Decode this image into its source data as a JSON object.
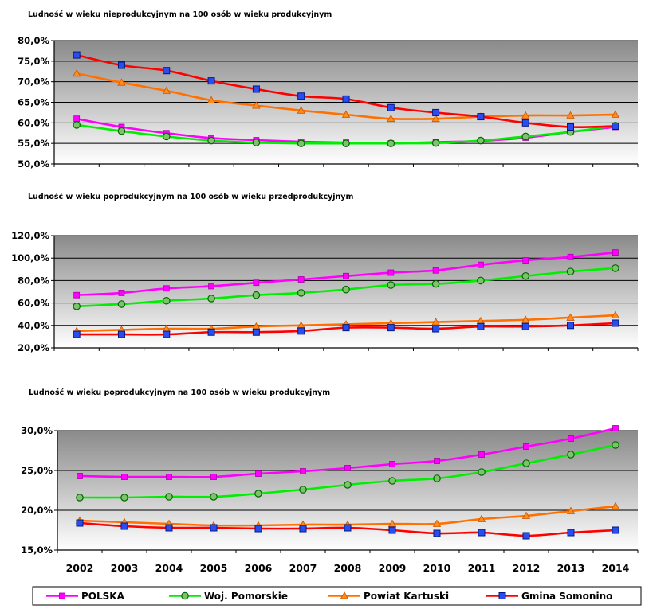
{
  "series_legend": [
    {
      "name": "POLSKA",
      "color": "#ff00ff",
      "marker": "square"
    },
    {
      "name": "Woj. Pomorskie",
      "color": "#00ee00",
      "marker": "circle"
    },
    {
      "name": "Powiat Kartuski",
      "color": "#ff7000",
      "marker": "triangle"
    },
    {
      "name": "Gmina Somonino",
      "color": "#ff0000",
      "marker": "square-blue"
    }
  ],
  "chart_data": [
    {
      "type": "line",
      "title": "Ludność w wieku nieprodukcyjnym na 100 osób w wieku produkcyjnym",
      "x": [
        "2002",
        "2003",
        "2004",
        "2005",
        "2006",
        "2007",
        "2008",
        "2009",
        "2010",
        "2011",
        "2012",
        "2013",
        "2014"
      ],
      "show_x_tick_labels": false,
      "ylim": [
        50,
        80
      ],
      "yticks": [
        "50,0%",
        "55,0%",
        "60,0%",
        "65,0%",
        "70,0%",
        "75,0%",
        "80,0%"
      ],
      "ytick_values": [
        50,
        55,
        60,
        65,
        70,
        75,
        80
      ],
      "grid": true,
      "series": [
        {
          "name": "POLSKA",
          "values": [
            61.0,
            59.0,
            57.5,
            56.3,
            55.8,
            55.4,
            55.2,
            55.0,
            55.3,
            55.6,
            56.4,
            57.8,
            59.0
          ]
        },
        {
          "name": "Woj. Pomorskie",
          "values": [
            59.5,
            58.0,
            56.7,
            55.7,
            55.2,
            55.0,
            55.0,
            55.0,
            55.1,
            55.7,
            56.7,
            57.8,
            59.3
          ]
        },
        {
          "name": "Powiat Kartuski",
          "values": [
            72.0,
            69.8,
            67.8,
            65.5,
            64.2,
            63.0,
            62.0,
            61.0,
            61.0,
            61.5,
            61.8,
            61.8,
            62.0
          ]
        },
        {
          "name": "Gmina Somonino",
          "values": [
            76.5,
            74.0,
            72.7,
            70.2,
            68.2,
            66.5,
            65.8,
            63.7,
            62.5,
            61.5,
            60.0,
            59.0,
            59.2
          ]
        }
      ]
    },
    {
      "type": "line",
      "title": "Ludność w wieku poprodukcyjnym na 100 osób w wieku przedprodukcyjnym",
      "x": [
        "2002",
        "2003",
        "2004",
        "2005",
        "2006",
        "2007",
        "2008",
        "2009",
        "2010",
        "2011",
        "2012",
        "2013",
        "2014"
      ],
      "show_x_tick_labels": false,
      "ylim": [
        20,
        120
      ],
      "yticks": [
        "20,0%",
        "40,0%",
        "60,0%",
        "80,0%",
        "100,0%",
        "120,0%"
      ],
      "ytick_values": [
        20,
        40,
        60,
        80,
        100,
        120
      ],
      "grid": true,
      "series": [
        {
          "name": "POLSKA",
          "values": [
            67,
            69,
            73,
            75,
            78,
            81,
            84,
            87,
            89,
            94,
            98,
            101,
            105
          ]
        },
        {
          "name": "Woj. Pomorskie",
          "values": [
            57,
            59,
            62,
            64,
            67,
            69,
            72,
            76,
            77,
            80,
            84,
            88,
            91
          ]
        },
        {
          "name": "Powiat Kartuski",
          "values": [
            35,
            36,
            37,
            37,
            39,
            40,
            41,
            42,
            43,
            44,
            45,
            47,
            49
          ]
        },
        {
          "name": "Gmina Somonino",
          "values": [
            32,
            32,
            32,
            34,
            34,
            35,
            38,
            38,
            37,
            39,
            39,
            40,
            42
          ]
        }
      ]
    },
    {
      "type": "line",
      "title": "Ludność w wieku poprodukcyjnym na 100 osób w wieku produkcyjnym",
      "x": [
        "2002",
        "2003",
        "2004",
        "2005",
        "2006",
        "2007",
        "2008",
        "2009",
        "2010",
        "2011",
        "2012",
        "2013",
        "2014"
      ],
      "show_x_tick_labels": true,
      "ylim": [
        15,
        30
      ],
      "yticks": [
        "15,0%",
        "20,0%",
        "25,0%",
        "30,0%"
      ],
      "ytick_values": [
        15,
        20,
        25,
        30
      ],
      "grid": true,
      "legend": "bottom",
      "series": [
        {
          "name": "POLSKA",
          "values": [
            24.3,
            24.2,
            24.2,
            24.2,
            24.6,
            24.9,
            25.3,
            25.8,
            26.2,
            27.0,
            28.0,
            29.0,
            30.3
          ]
        },
        {
          "name": "Woj. Pomorskie",
          "values": [
            21.6,
            21.6,
            21.7,
            21.7,
            22.1,
            22.6,
            23.2,
            23.7,
            24.0,
            24.8,
            25.9,
            27.0,
            28.2
          ]
        },
        {
          "name": "Powiat Kartuski",
          "values": [
            18.7,
            18.5,
            18.3,
            18.1,
            18.1,
            18.2,
            18.2,
            18.3,
            18.3,
            18.9,
            19.3,
            19.9,
            20.5
          ]
        },
        {
          "name": "Gmina Somonino",
          "values": [
            18.4,
            18.0,
            17.8,
            17.8,
            17.7,
            17.7,
            17.8,
            17.5,
            17.1,
            17.2,
            16.8,
            17.2,
            17.5
          ]
        }
      ]
    }
  ]
}
